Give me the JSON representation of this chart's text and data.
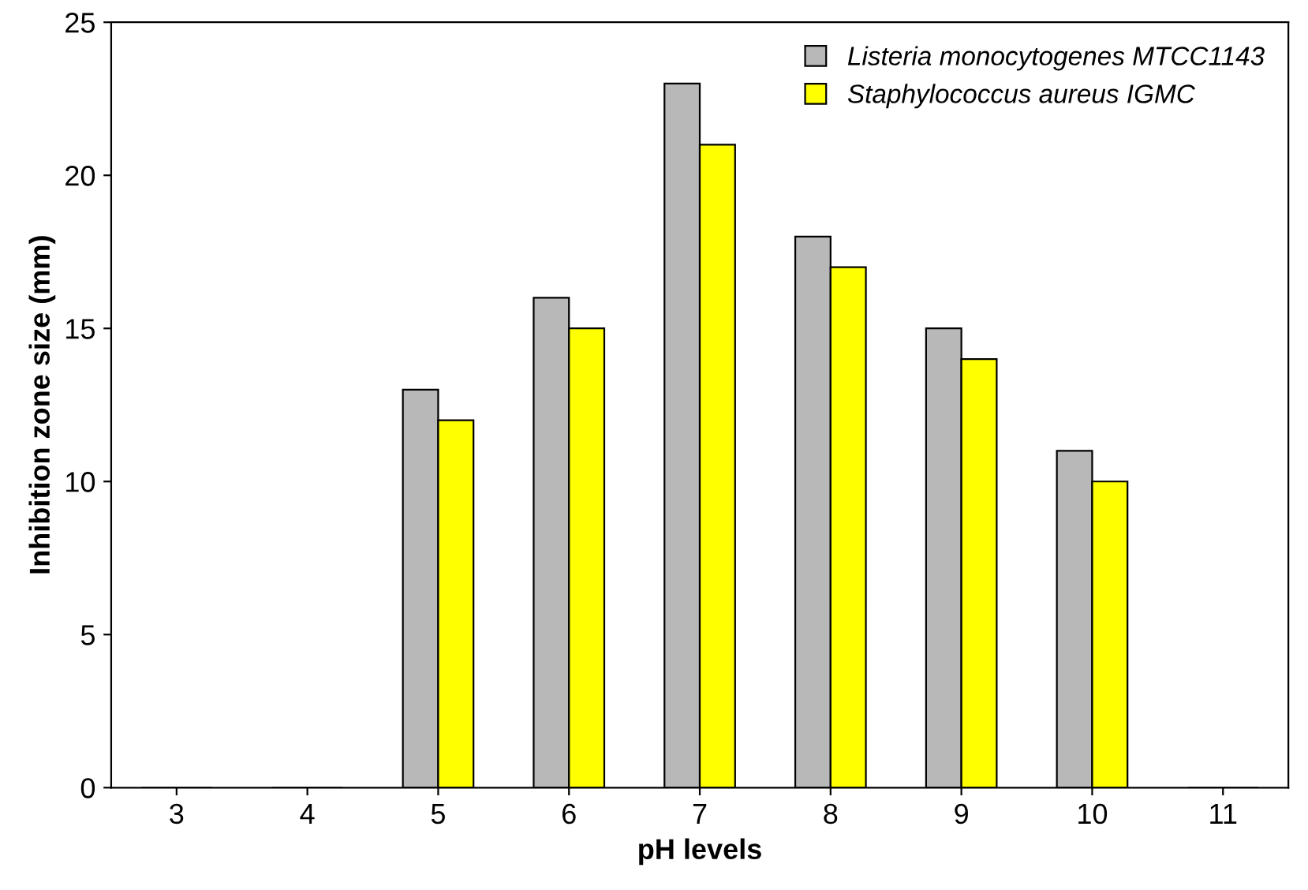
{
  "chart_data": {
    "type": "bar",
    "xlabel": "pH levels",
    "ylabel": "Inhibition zone size (mm)",
    "categories": [
      "3",
      "4",
      "5",
      "6",
      "7",
      "8",
      "9",
      "10",
      "11"
    ],
    "series": [
      {
        "name": "Listeria monocytogenes MTCC1143",
        "color": "#b8b8b8",
        "values": [
          0,
          0,
          13,
          16,
          23,
          18,
          15,
          11,
          0
        ]
      },
      {
        "name": "Staphylococcus aureus IGMC",
        "color": "#ffff00",
        "values": [
          0,
          0,
          12,
          15,
          21,
          17,
          14,
          10,
          0
        ]
      }
    ],
    "ylim": [
      0,
      25
    ],
    "yticks": [
      0,
      5,
      10,
      15,
      20,
      25
    ],
    "grid": false,
    "legend": "top right"
  }
}
